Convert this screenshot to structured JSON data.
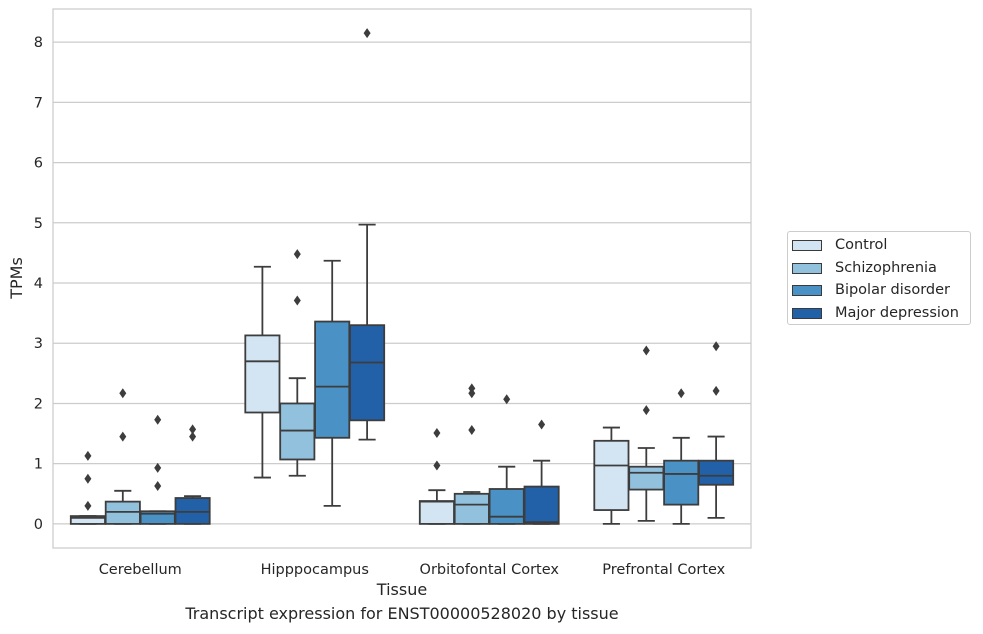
{
  "caption": "Transcript expression for ENST00000528020 by tissue",
  "legend": {
    "items": [
      {
        "label": "Control",
        "color": "#d3e4f3"
      },
      {
        "label": "Schizophrenia",
        "color": "#92c1de"
      },
      {
        "label": "Bipolar disorder",
        "color": "#4a91c5"
      },
      {
        "label": "Major depression",
        "color": "#2260a7"
      }
    ]
  },
  "chart_data": {
    "type": "boxplot",
    "xlabel": "Tissue",
    "ylabel": "TPMs",
    "ylim": [
      -0.4,
      8.55
    ],
    "yticks": [
      0,
      1,
      2,
      3,
      4,
      5,
      6,
      7,
      8
    ],
    "grid": "horizontal",
    "legend_position": "right",
    "categories": [
      "Cerebellum",
      "Hipppocampus",
      "Orbitofontal Cortex",
      "Prefrontal Cortex"
    ],
    "series": [
      {
        "name": "Control",
        "color": "#d3e4f3",
        "boxes": [
          {
            "q1": 0,
            "median": 0.1,
            "q3": 0.13,
            "whisker_low": 0,
            "whisker_high": 0.13,
            "outliers": [
              0.3,
              0.75,
              1.13
            ]
          },
          {
            "q1": 1.85,
            "median": 2.7,
            "q3": 3.13,
            "whisker_low": 0.77,
            "whisker_high": 4.27,
            "outliers": []
          },
          {
            "q1": 0,
            "median": 0.37,
            "q3": 0.38,
            "whisker_low": 0,
            "whisker_high": 0.56,
            "outliers": [
              0.97,
              1.51
            ]
          },
          {
            "q1": 0.23,
            "median": 0.97,
            "q3": 1.38,
            "whisker_low": 0,
            "whisker_high": 1.6,
            "outliers": []
          }
        ]
      },
      {
        "name": "Schizophrenia",
        "color": "#92c1de",
        "boxes": [
          {
            "q1": 0,
            "median": 0.2,
            "q3": 0.37,
            "whisker_low": 0,
            "whisker_high": 0.55,
            "outliers": [
              1.45,
              2.17
            ]
          },
          {
            "q1": 1.07,
            "median": 1.55,
            "q3": 2.0,
            "whisker_low": 0.8,
            "whisker_high": 2.42,
            "outliers": [
              3.71,
              4.48
            ]
          },
          {
            "q1": 0,
            "median": 0.32,
            "q3": 0.5,
            "whisker_low": 0,
            "whisker_high": 0.53,
            "outliers": [
              1.56,
              2.17,
              2.25
            ]
          },
          {
            "q1": 0.57,
            "median": 0.85,
            "q3": 0.95,
            "whisker_low": 0.05,
            "whisker_high": 1.26,
            "outliers": [
              1.89,
              2.88
            ]
          }
        ]
      },
      {
        "name": "Bipolar disorder",
        "color": "#4a91c5",
        "boxes": [
          {
            "q1": 0,
            "median": 0.17,
            "q3": 0.21,
            "whisker_low": 0,
            "whisker_high": 0.21,
            "outliers": [
              0.63,
              0.93,
              1.73
            ]
          },
          {
            "q1": 1.43,
            "median": 2.28,
            "q3": 3.36,
            "whisker_low": 0.3,
            "whisker_high": 4.37,
            "outliers": []
          },
          {
            "q1": 0,
            "median": 0.12,
            "q3": 0.58,
            "whisker_low": 0,
            "whisker_high": 0.95,
            "outliers": [
              2.07
            ]
          },
          {
            "q1": 0.32,
            "median": 0.83,
            "q3": 1.05,
            "whisker_low": 0,
            "whisker_high": 1.43,
            "outliers": [
              2.17
            ]
          }
        ]
      },
      {
        "name": "Major depression",
        "color": "#2260a7",
        "boxes": [
          {
            "q1": 0,
            "median": 0.2,
            "q3": 0.43,
            "whisker_low": 0,
            "whisker_high": 0.46,
            "outliers": [
              1.45,
              1.57
            ]
          },
          {
            "q1": 1.72,
            "median": 2.68,
            "q3": 3.3,
            "whisker_low": 1.4,
            "whisker_high": 4.97,
            "outliers": [
              8.15
            ]
          },
          {
            "q1": 0,
            "median": 0.03,
            "q3": 0.62,
            "whisker_low": 0,
            "whisker_high": 1.05,
            "outliers": [
              1.65
            ]
          },
          {
            "q1": 0.65,
            "median": 0.8,
            "q3": 1.05,
            "whisker_low": 0.1,
            "whisker_high": 1.45,
            "outliers": [
              2.21,
              2.95
            ]
          }
        ]
      }
    ]
  }
}
